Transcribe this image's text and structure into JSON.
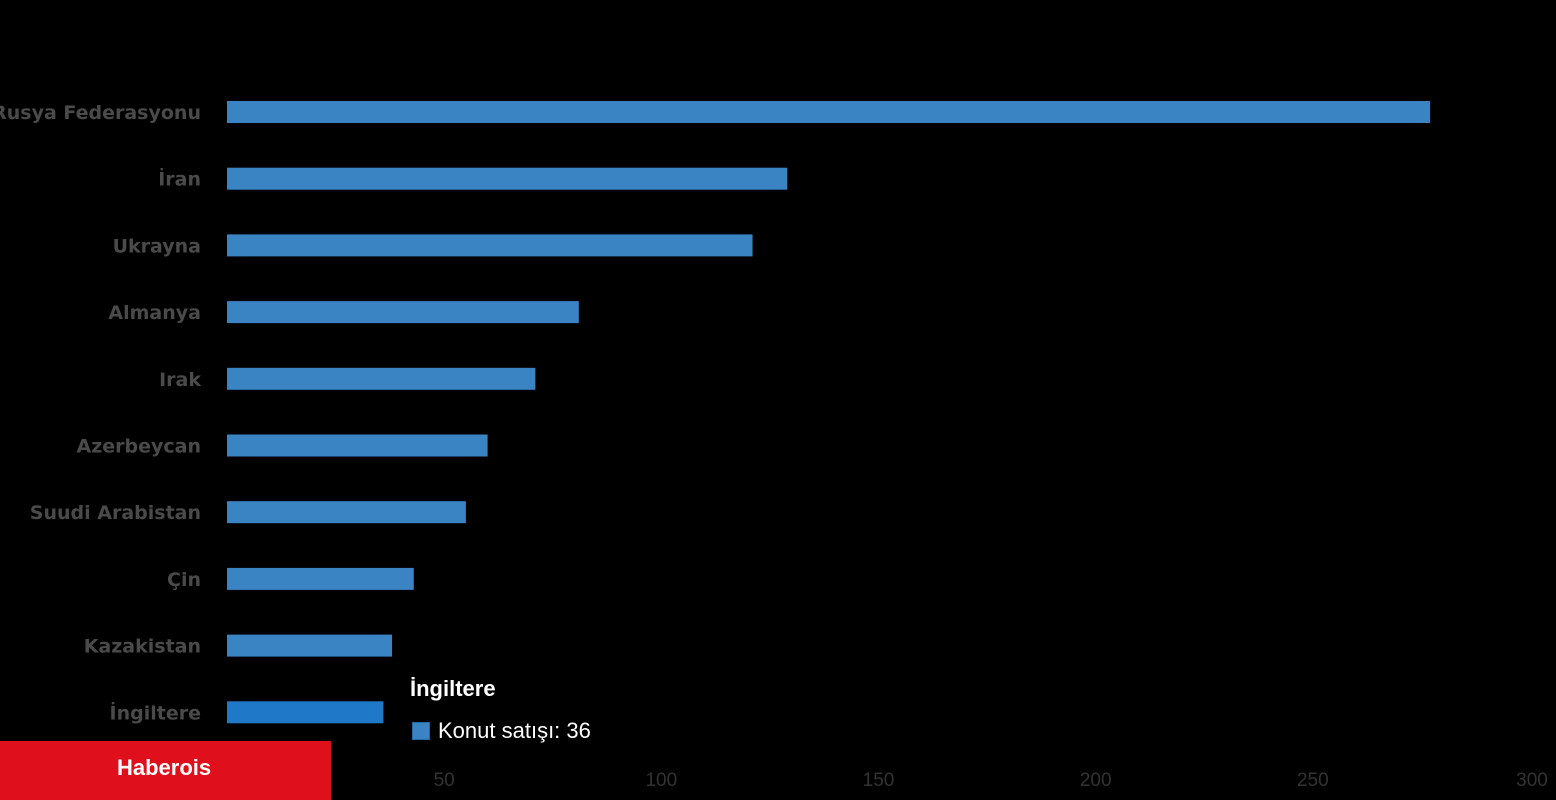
{
  "chart_data": {
    "type": "bar",
    "orientation": "horizontal",
    "title": "",
    "xlabel": "",
    "ylabel": "",
    "categories": [
      "Rusya Federasyonu",
      "İran",
      "Ukrayna",
      "Almanya",
      "Irak",
      "Azerbeycan",
      "Suudi Arabistan",
      "Çin",
      "Kazakistan",
      "İngiltere"
    ],
    "series": [
      {
        "values": [
          277,
          129,
          121,
          81,
          71,
          60,
          55,
          43,
          38,
          36
        ]
      }
    ],
    "xlim": [
      0,
      300
    ],
    "x_ticks": [
      "0",
      "50",
      "100",
      "150",
      "200",
      "250",
      "300"
    ],
    "grid": false,
    "legend": "none",
    "highlighted_category": "İngiltere",
    "colors": {
      "bar": "#3a84c4",
      "bar_highlight": "#1f78c8",
      "background": "#000000",
      "category_text": "#4a4a4a",
      "tick_text": "#333333"
    }
  },
  "tooltip": {
    "title": "İngiltere",
    "series_label": "Konut satışı: ",
    "value": "36",
    "swatch_color": "#3a84c4"
  },
  "watermark": {
    "text": "Haberois",
    "background": "#e00f1c"
  }
}
